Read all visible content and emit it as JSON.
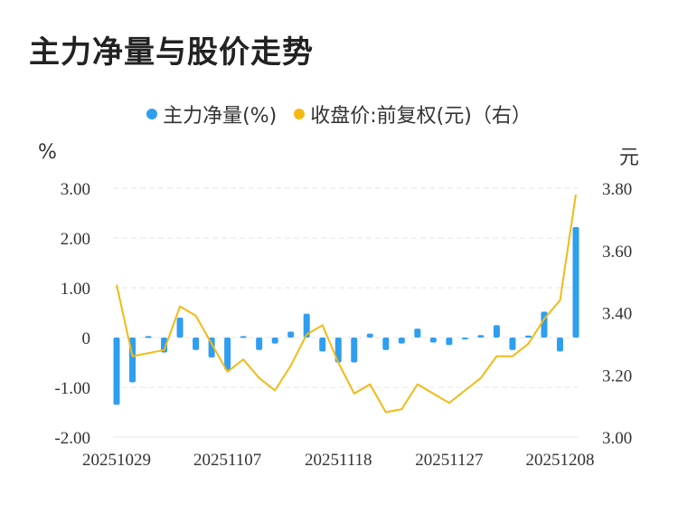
{
  "title": "主力净量与股价走势",
  "legend": [
    {
      "label": "主力净量(%)",
      "color": "#2f9ef0"
    },
    {
      "label": "收盘价:前复权(元)（右）",
      "color": "#f5b914"
    }
  ],
  "left_unit": "%",
  "right_unit": "元",
  "colors": {
    "bar": "#2f9ef0",
    "line": "#f5b914",
    "grid": "#e6e6e6"
  },
  "chart_data": {
    "type": "bar+line",
    "x_ticks": [
      "20251029",
      "20251107",
      "20251118",
      "20251127",
      "20251208"
    ],
    "y_left_ticks": [
      "3.00",
      "2.00",
      "1.00",
      "0",
      "-1.00",
      "-2.00"
    ],
    "y_right_ticks": [
      "3.80",
      "3.60",
      "3.40",
      "3.20",
      "3.00"
    ],
    "ylim_left": [
      -2,
      3
    ],
    "ylim_right": [
      3.0,
      3.8
    ],
    "bars": [
      -1.35,
      -0.9,
      0.03,
      -0.3,
      0.4,
      -0.25,
      -0.4,
      -0.65,
      0.03,
      -0.25,
      -0.12,
      0.12,
      0.48,
      -0.28,
      -0.5,
      -0.5,
      0.08,
      -0.25,
      -0.12,
      0.18,
      -0.1,
      -0.15,
      -0.02,
      0.05,
      0.25,
      -0.25,
      0.04,
      0.52,
      -0.28,
      2.22
    ],
    "close": [
      3.49,
      3.26,
      3.27,
      3.28,
      3.42,
      3.39,
      3.3,
      3.21,
      3.25,
      3.19,
      3.15,
      3.23,
      3.33,
      3.36,
      3.24,
      3.14,
      3.17,
      3.08,
      3.09,
      3.17,
      3.14,
      3.11,
      3.15,
      3.19,
      3.26,
      3.26,
      3.3,
      3.38,
      3.44,
      3.78
    ]
  }
}
